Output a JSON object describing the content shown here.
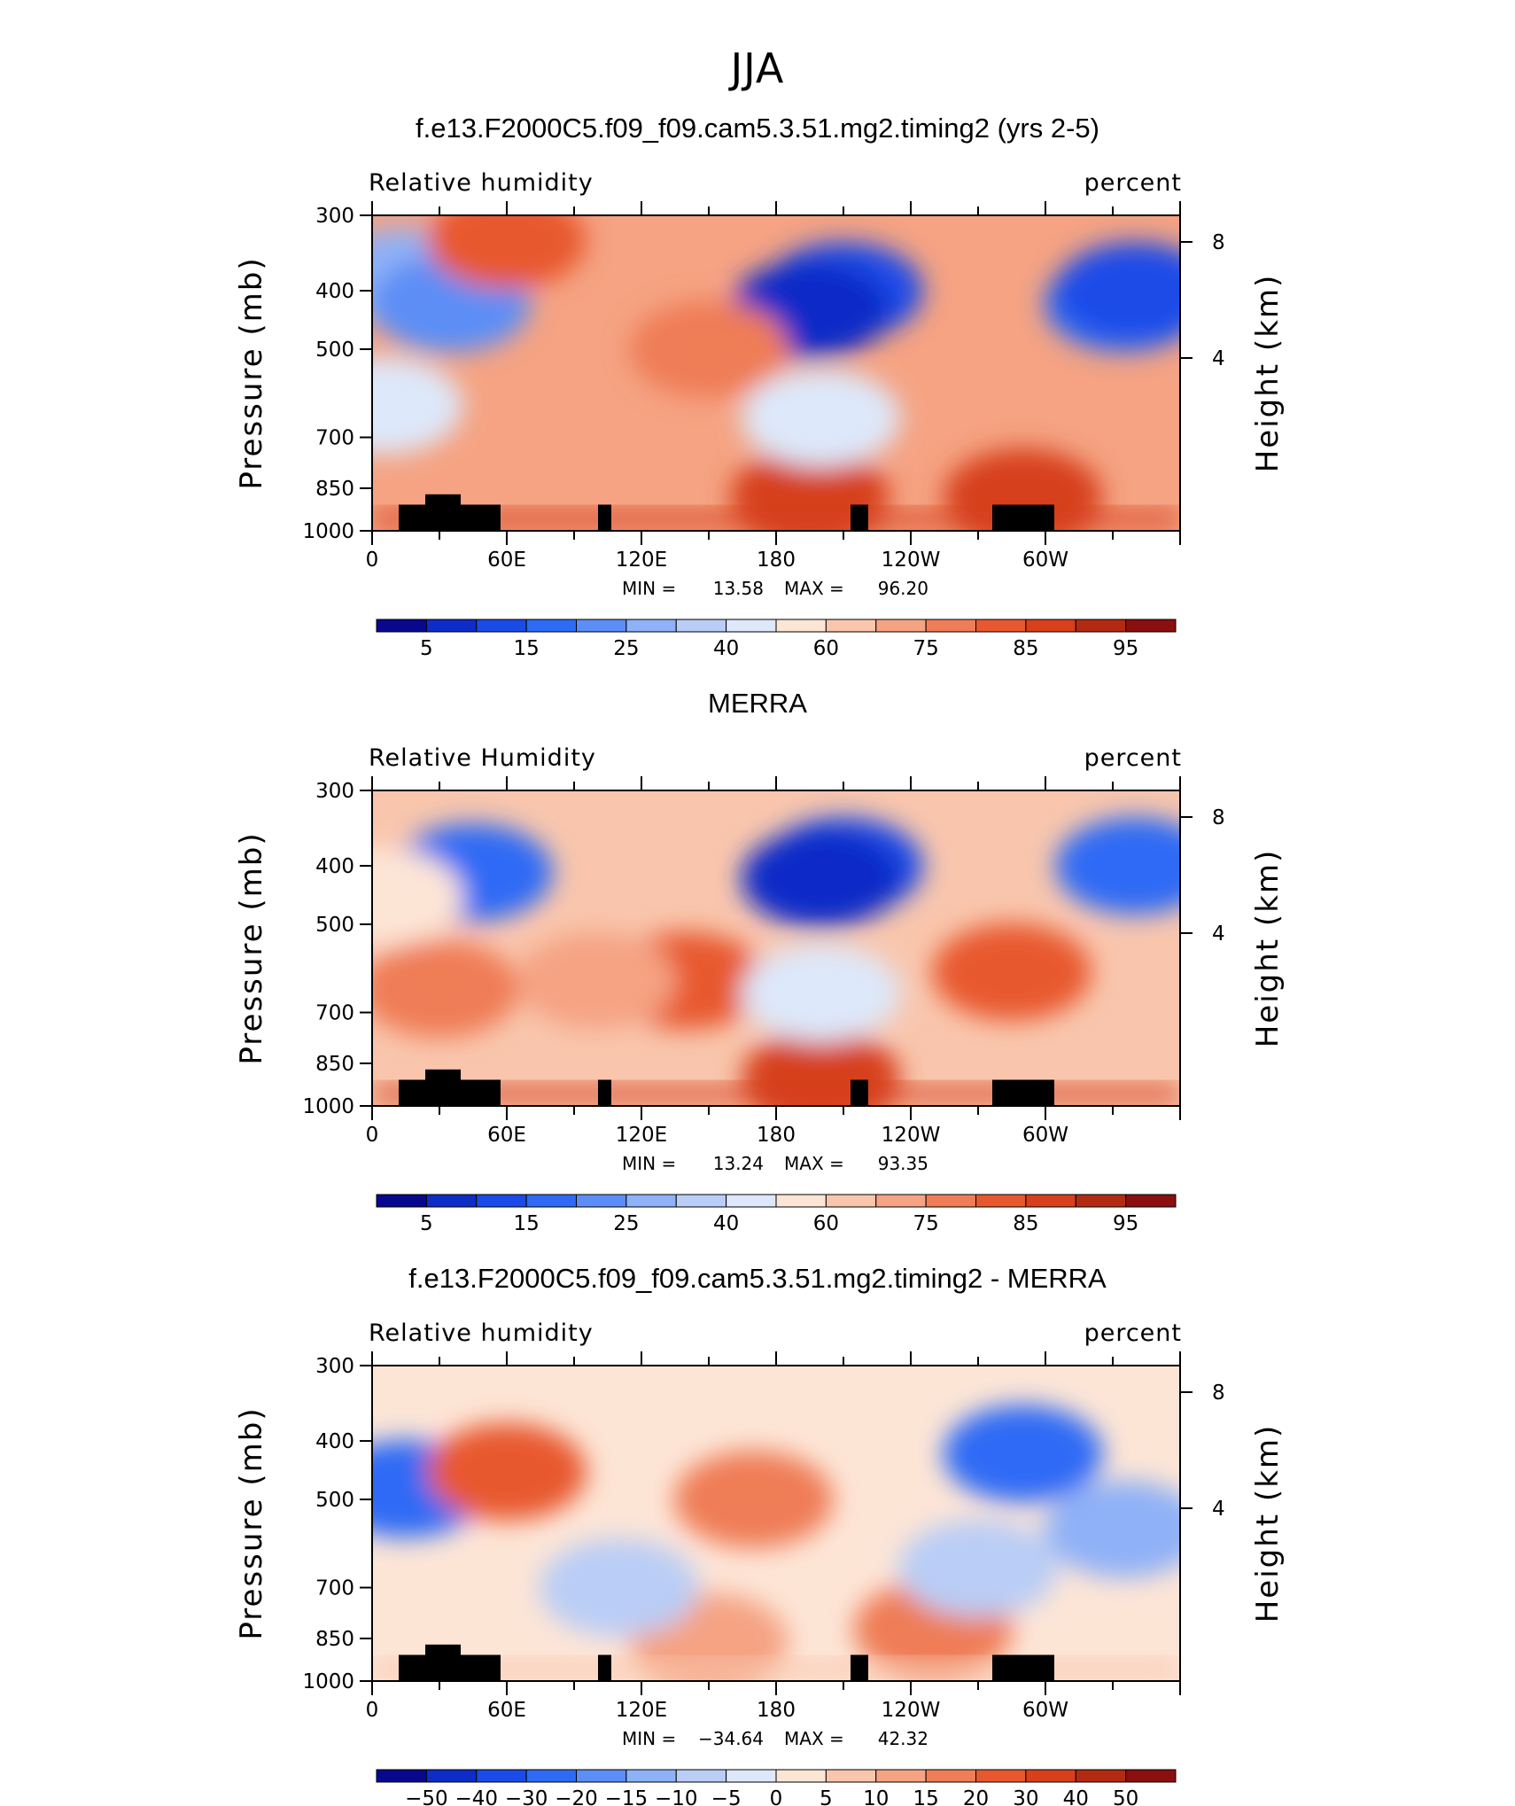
{
  "figure": {
    "season": "JJA",
    "palette_seq": [
      "#08088f",
      "#0d2cc8",
      "#1a4be8",
      "#2e6bf5",
      "#5b8ef6",
      "#8fb1f7",
      "#b9cdf6",
      "#dde8fa",
      "#fde5d6",
      "#f9c6ad",
      "#f5a383",
      "#ef7d57",
      "#e8582f",
      "#d7401b",
      "#b32a12",
      "#8a0f0f"
    ],
    "palette_diff": [
      "#08088f",
      "#0d2cc8",
      "#1a4be8",
      "#2e6bf5",
      "#5b8ef6",
      "#8fb1f7",
      "#b9cdf6",
      "#dde8fa",
      "#fde5d6",
      "#f9c6ad",
      "#f5a383",
      "#ef7d57",
      "#e8582f",
      "#d7401b",
      "#b32a12",
      "#8a0f0f"
    ]
  },
  "chart_data": [
    {
      "type": "heatmap",
      "title": "f.e13.F2000C5.f09_f09.cam5.3.51.mg2.timing2 (yrs 2-5)",
      "left_label": "Relative  humidity",
      "right_label": "percent",
      "ylabel": "Pressure  (mb)",
      "ylabel_right": "Height  (km)",
      "x_ticks": [
        "0",
        "60E",
        "120E",
        "180",
        "120W",
        "60W"
      ],
      "y_ticks": [
        "300",
        "400",
        "500",
        "700",
        "850",
        "1000"
      ],
      "y_right_ticks": [
        "8",
        "4"
      ],
      "stats": {
        "min_label": "MIN =",
        "min": "13.58",
        "max_label": "MAX =",
        "max": "96.20"
      },
      "colorbar_labels": [
        "5",
        "15",
        "25",
        "40",
        "60",
        "75",
        "85",
        "95"
      ],
      "features": {
        "background_index": 10,
        "blobs": [
          {
            "lon": 15,
            "p": 380,
            "index": 5
          },
          {
            "lon": 35,
            "p": 420,
            "index": 4
          },
          {
            "lon": 210,
            "p": 400,
            "index": 2
          },
          {
            "lon": 195,
            "p": 430,
            "index": 1
          },
          {
            "lon": 335,
            "p": 420,
            "index": 3
          },
          {
            "lon": 340,
            "p": 400,
            "index": 2
          },
          {
            "lon": 150,
            "p": 500,
            "index": 11
          },
          {
            "lon": 60,
            "p": 330,
            "index": 12
          },
          {
            "lon": 195,
            "p": 880,
            "index": 13
          },
          {
            "lon": 290,
            "p": 880,
            "index": 13
          },
          {
            "lon": 200,
            "p": 650,
            "index": 7
          },
          {
            "lon": 5,
            "p": 620,
            "index": 7
          }
        ]
      }
    },
    {
      "type": "heatmap",
      "title": "MERRA",
      "left_label": "Relative  Humidity",
      "right_label": "percent",
      "ylabel": "Pressure  (mb)",
      "ylabel_right": "Height  (km)",
      "x_ticks": [
        "0",
        "60E",
        "120E",
        "180",
        "120W",
        "60W"
      ],
      "y_ticks": [
        "300",
        "400",
        "500",
        "700",
        "850",
        "1000"
      ],
      "y_right_ticks": [
        "8",
        "4"
      ],
      "stats": {
        "min_label": "MIN =",
        "min": "13.24",
        "max_label": "MAX =",
        "max": "93.35"
      },
      "colorbar_labels": [
        "5",
        "15",
        "25",
        "40",
        "60",
        "75",
        "85",
        "95"
      ],
      "features": {
        "background_index": 9,
        "blobs": [
          {
            "lon": 45,
            "p": 410,
            "index": 3
          },
          {
            "lon": 210,
            "p": 400,
            "index": 2
          },
          {
            "lon": 200,
            "p": 420,
            "index": 1
          },
          {
            "lon": 340,
            "p": 400,
            "index": 3
          },
          {
            "lon": 140,
            "p": 620,
            "index": 12
          },
          {
            "lon": 285,
            "p": 600,
            "index": 12
          },
          {
            "lon": 100,
            "p": 620,
            "index": 10
          },
          {
            "lon": 200,
            "p": 900,
            "index": 13
          },
          {
            "lon": 30,
            "p": 640,
            "index": 11
          },
          {
            "lon": 200,
            "p": 650,
            "index": 7
          },
          {
            "lon": 5,
            "p": 450,
            "index": 8
          }
        ]
      }
    },
    {
      "type": "heatmap",
      "title": "f.e13.F2000C5.f09_f09.cam5.3.51.mg2.timing2 - MERRA",
      "left_label": "Relative  humidity",
      "right_label": "percent",
      "ylabel": "Pressure  (mb)",
      "ylabel_right": "Height  (km)",
      "x_ticks": [
        "0",
        "60E",
        "120E",
        "180",
        "120W",
        "60W"
      ],
      "y_ticks": [
        "300",
        "400",
        "500",
        "700",
        "850",
        "1000"
      ],
      "y_right_ticks": [
        "8",
        "4"
      ],
      "stats": {
        "min_label": "MIN =",
        "min": "−34.64",
        "max_label": "MAX =",
        "max": "42.32"
      },
      "colorbar_labels": [
        "−50",
        "−40",
        "−30",
        "−20",
        "−15",
        "−10",
        "−5",
        "0",
        "5",
        "10",
        "15",
        "20",
        "30",
        "40",
        "50"
      ],
      "features": {
        "background_index": 8,
        "blobs": [
          {
            "lon": 15,
            "p": 480,
            "index": 3
          },
          {
            "lon": 290,
            "p": 420,
            "index": 3
          },
          {
            "lon": 335,
            "p": 560,
            "index": 5
          },
          {
            "lon": 60,
            "p": 450,
            "index": 12
          },
          {
            "lon": 170,
            "p": 500,
            "index": 11
          },
          {
            "lon": 250,
            "p": 820,
            "index": 11
          },
          {
            "lon": 150,
            "p": 860,
            "index": 10
          },
          {
            "lon": 110,
            "p": 700,
            "index": 6
          },
          {
            "lon": 270,
            "p": 650,
            "index": 6
          }
        ]
      }
    }
  ]
}
